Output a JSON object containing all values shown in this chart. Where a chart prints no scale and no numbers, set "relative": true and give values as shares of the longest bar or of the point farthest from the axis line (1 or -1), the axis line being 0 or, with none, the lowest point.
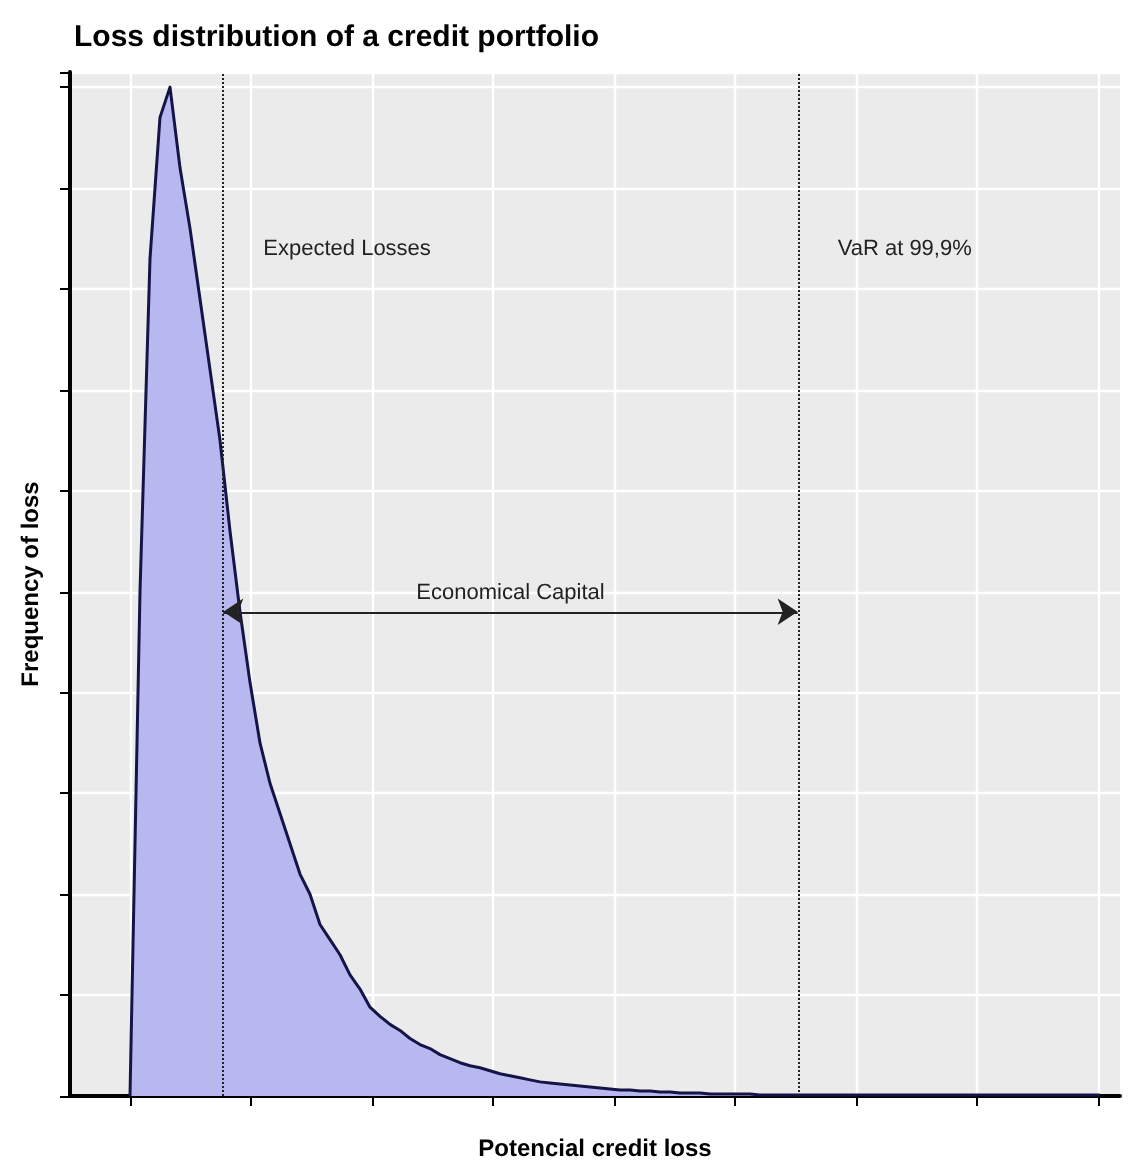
{
  "chart_data": {
    "type": "area",
    "title": "Loss distribution of a credit portfolio",
    "xlabel": "Potencial credit loss",
    "ylabel": "Frequency of loss",
    "relative": true,
    "grid": true,
    "tick_labels": false,
    "color": "#b8b8f0",
    "categories": [
      null,
      null,
      null,
      null,
      null,
      null,
      null,
      null,
      null,
      null,
      null,
      null,
      null,
      null,
      null,
      null,
      null,
      null,
      null,
      null,
      null,
      null,
      null,
      null,
      null,
      null,
      null,
      null,
      null,
      null,
      null,
      null,
      null,
      null,
      null,
      null,
      null,
      null,
      null,
      null,
      null,
      null,
      null,
      null,
      null,
      null,
      null,
      null,
      null,
      null,
      null,
      null,
      null,
      null,
      null,
      null,
      null,
      null,
      null,
      null,
      null,
      null,
      null,
      null,
      null,
      null,
      null,
      null,
      null,
      null,
      null,
      null,
      null,
      null,
      null,
      null,
      null,
      null,
      null,
      null,
      null,
      null,
      null,
      null,
      null,
      null,
      null,
      null,
      null,
      null,
      null,
      null,
      null,
      null,
      null,
      null,
      null,
      null,
      null,
      null,
      null,
      null,
      null,
      null,
      null,
      null
    ],
    "values": [
      null,
      null,
      null,
      null,
      null,
      null,
      0,
      0.5,
      0.83,
      0.97,
      1,
      0.92,
      0.86,
      0.79,
      0.72,
      0.65,
      0.56,
      0.48,
      0.41,
      0.35,
      0.31,
      0.28,
      0.25,
      0.22,
      0.2,
      0.17,
      0.155,
      0.14,
      0.12,
      0.106,
      0.088,
      0.079,
      0.071,
      0.065,
      0.057,
      0.051,
      0.047,
      0.041,
      0.037,
      0.033,
      0.03,
      0.028,
      0.025,
      0.022,
      0.02,
      0.018,
      0.016,
      0.014,
      0.013,
      0.012,
      0.011,
      0.01,
      0.009,
      0.008,
      0.007,
      0.006,
      0.006,
      0.005,
      0.005,
      0.004,
      0.004,
      0.003,
      0.003,
      0.003,
      0.002,
      0.002,
      0.002,
      0.002,
      0.002,
      0.001,
      0.001,
      0.001,
      0.001,
      0.001,
      0.001,
      0.001,
      0.001,
      0.001,
      0.001,
      0.001,
      0.001,
      0.001,
      0.001,
      0.001,
      0.001,
      0.001,
      0.001,
      0.001,
      0.001,
      0.001,
      0.001,
      0.001,
      0.001,
      0.001,
      0.001,
      0.001,
      0.001,
      0.001,
      0.001,
      0.001,
      0.001,
      0.001,
      0.001,
      0.001,
      null,
      null
    ],
    "annotations": [
      "Expected Losses",
      "VaR at 99,9%",
      "Economical Capital"
    ]
  }
}
